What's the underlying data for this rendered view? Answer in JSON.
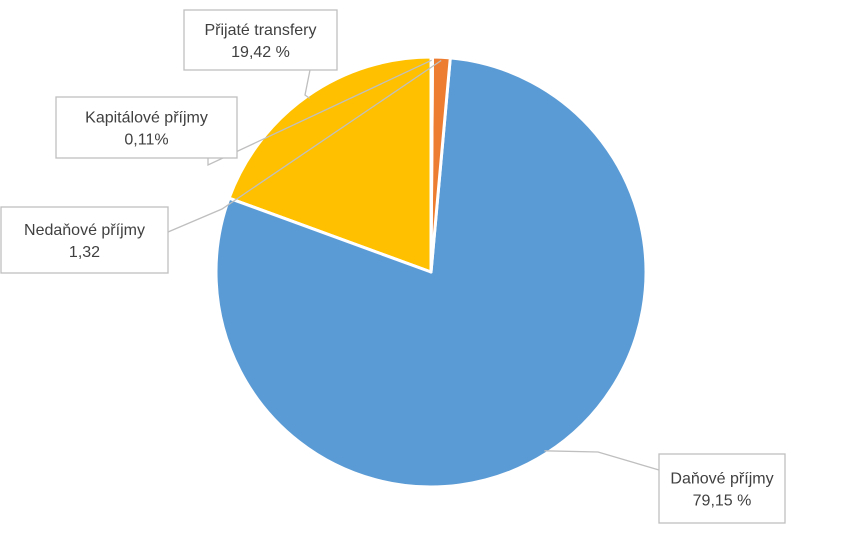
{
  "chart_data": {
    "type": "pie",
    "title": "",
    "legend": "none",
    "series": [
      {
        "slices": [
          {
            "label": "Přijaté transfery",
            "value": 19.42,
            "value_text": "19,42 %",
            "color": "#FFC000"
          },
          {
            "label": "Daňové příjmy",
            "value": 79.15,
            "value_text": "79,15 %",
            "color": "#5B9BD5"
          },
          {
            "label": "Nedaňové příjmy",
            "value": 1.32,
            "value_text": "1,32",
            "color": "#ED7D31"
          },
          {
            "label": "Kapitálové příjmy",
            "value": 0.11,
            "value_text": "0,11%",
            "color": "#A5A5A5"
          }
        ]
      }
    ]
  }
}
